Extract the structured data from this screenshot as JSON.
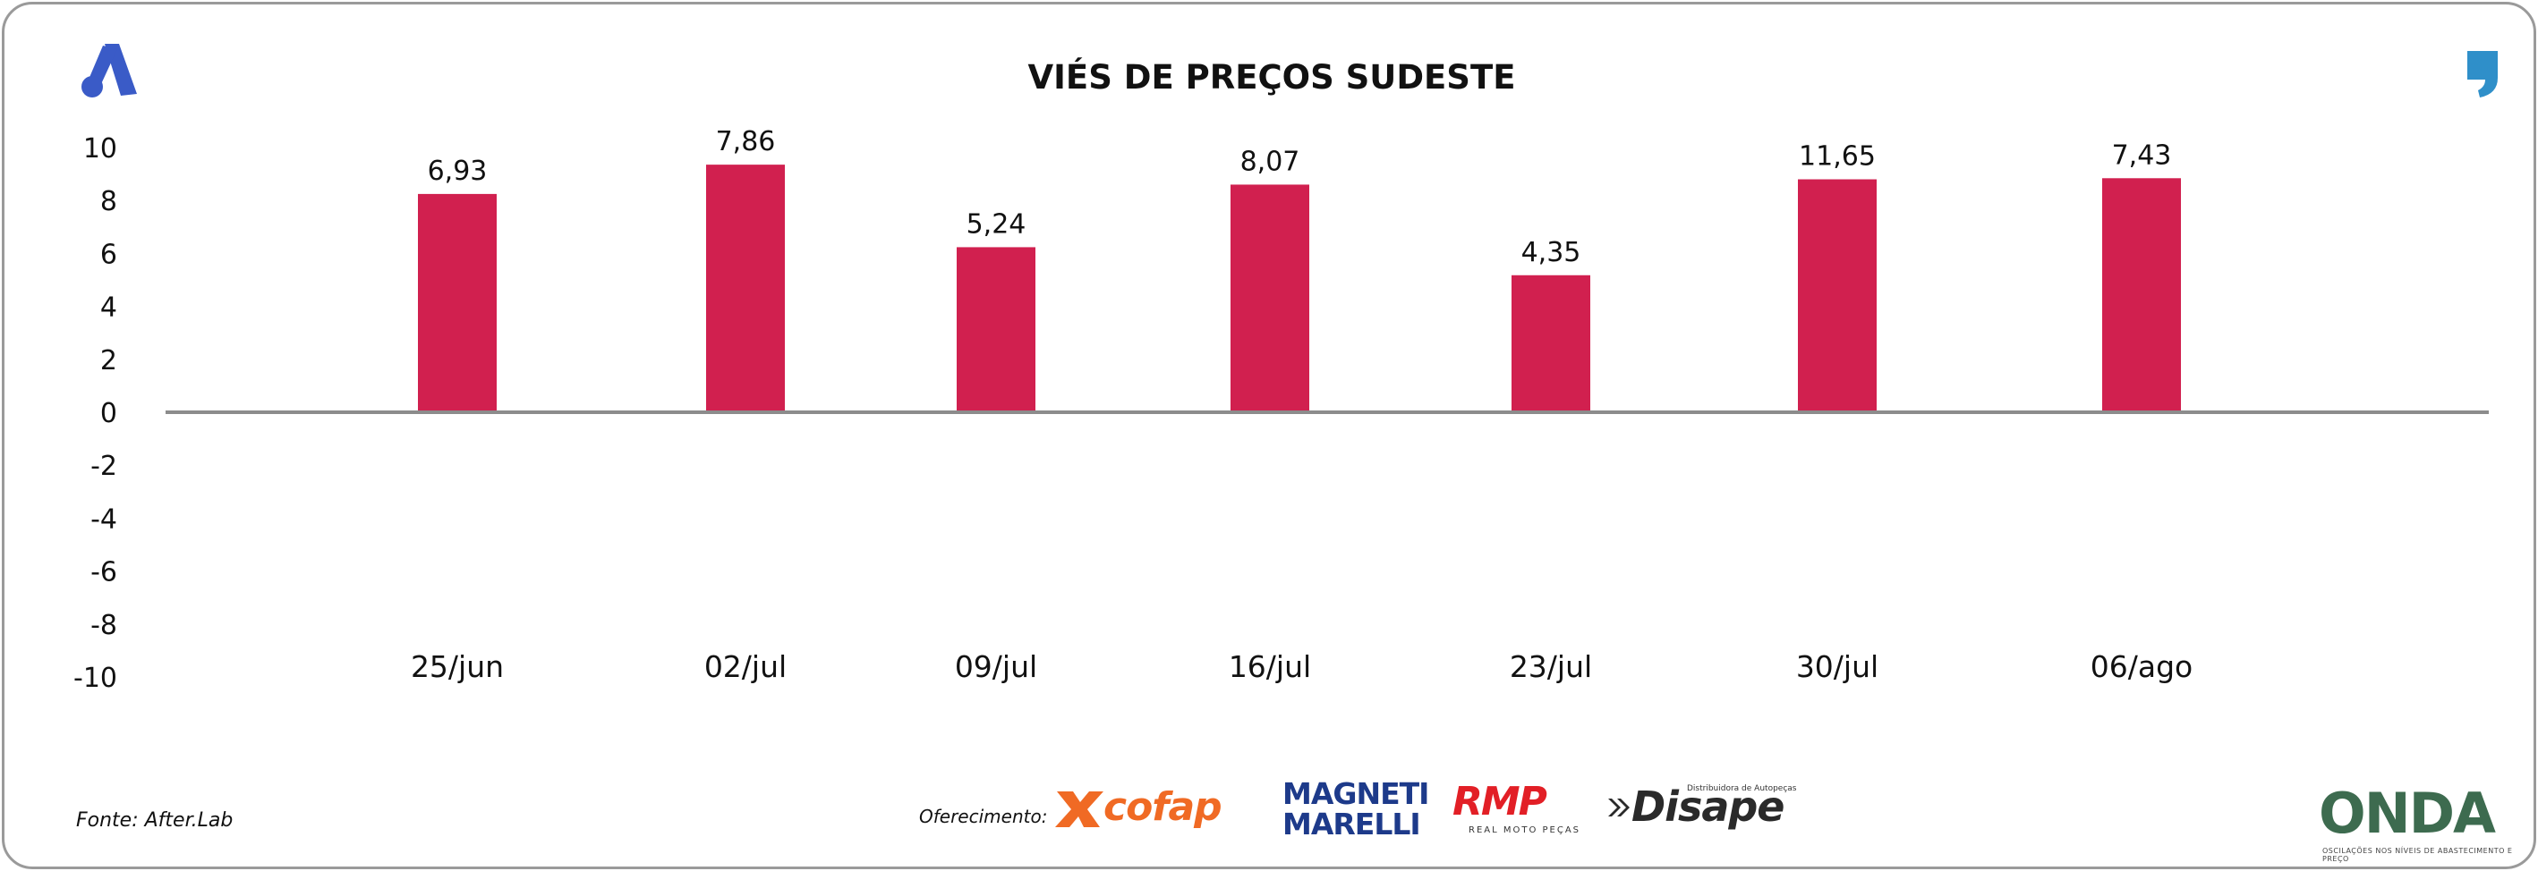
{
  "chart_data": {
    "type": "bar",
    "title": "VIÉS DE PREÇOS SUDESTE",
    "categories": [
      "25/jun",
      "02/jul",
      "09/jul",
      "16/jul",
      "23/jul",
      "30/jul",
      "06/ago"
    ],
    "values": [
      6.93,
      7.86,
      5.24,
      8.07,
      4.35,
      11.65,
      7.43
    ],
    "data_labels": [
      "6,93",
      "7,86",
      "5,24",
      "8,07",
      "4,35",
      "11,65",
      "7,43"
    ],
    "yticks": [
      "10",
      "8",
      "6",
      "4",
      "2",
      "0",
      "-2",
      "-4",
      "-6",
      "-8",
      "-10"
    ],
    "ylim": [
      -10,
      10
    ],
    "grid": false,
    "bar_color": "#d1204f",
    "axis_color": "#8c8c8c"
  },
  "footer": {
    "source": "Fonte: After.Lab",
    "sponsor_label": "Oferecimento:"
  },
  "logos": {
    "top_left": "a-brand-logo-icon",
    "top_right": "quote-mark-icon",
    "cofap": "cofap",
    "magneti_marelli": "MAGNETI MARELLI",
    "rmp": "RMP",
    "rmp_sub": "REAL MOTO PEÇAS",
    "disape": "Disape",
    "disape_sub": "Distribuidora de Autopeças",
    "onda": "ONDA",
    "onda_sub": "OSCILAÇÕES NOS NÍVEIS DE ABASTECIMENTO E PREÇO",
    "colors": {
      "blue": "#3a5bc7",
      "cofap": "#f06a24",
      "marelli": "#1d3a8a",
      "rmp": "#e21f26",
      "onda_green": "#3d6b4f",
      "onda_blue": "#2f6fa8"
    }
  }
}
